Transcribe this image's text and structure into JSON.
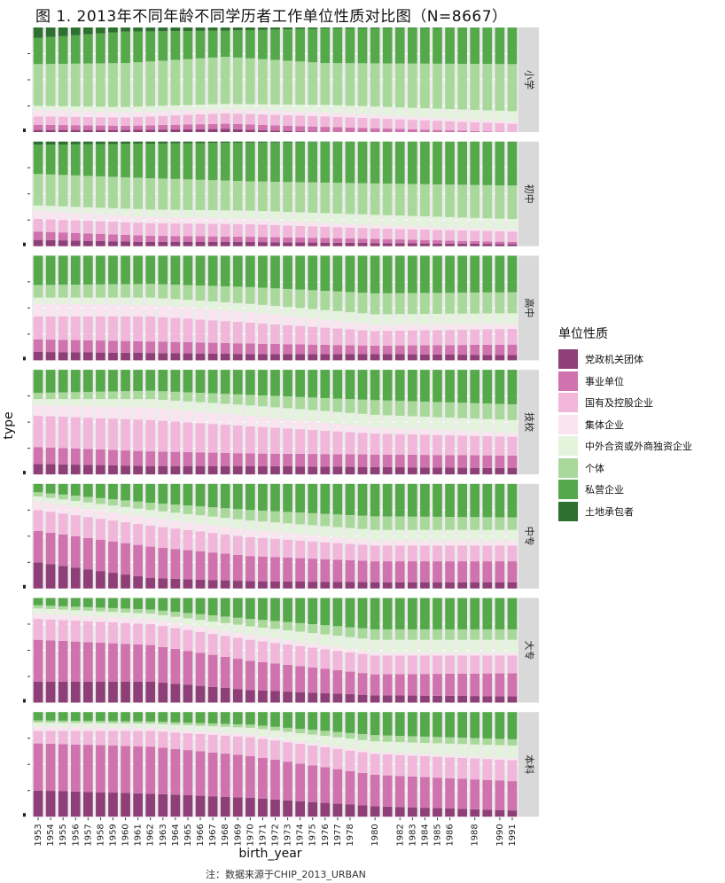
{
  "title": "图 1. 2013年不同年龄不同学历者工作单位性质对比图（N=8667）",
  "note": "注：数据来源于CHIP_2013_URBAN",
  "legend": {
    "title": "单位性质",
    "items": [
      {
        "label": "党政机关团体",
        "color": "#8e3f77"
      },
      {
        "label": "事业单位",
        "color": "#cf72ae"
      },
      {
        "label": "国有及控股企业",
        "color": "#f1b6da"
      },
      {
        "label": "集体企业",
        "color": "#fae4f0"
      },
      {
        "label": "中外合资或外商独资企业",
        "color": "#e3f3dc"
      },
      {
        "label": "个体",
        "color": "#a9d99a"
      },
      {
        "label": "私营企业",
        "color": "#55a94b"
      },
      {
        "label": "土地承包者",
        "color": "#2e7030"
      }
    ]
  },
  "chart_data": {
    "type": "bar",
    "stacked": "proportion",
    "xlabel": "birth_year",
    "ylabel": "type",
    "ylim": [
      0,
      1
    ],
    "x_tick_labels": [
      "1953",
      "1954",
      "1955",
      "1956",
      "1957",
      "1958",
      "1959",
      "1960",
      "1961",
      "1962",
      "1963",
      "1964",
      "1965",
      "1966",
      "1967",
      "1968",
      "1969",
      "1970",
      "1971",
      "1972",
      "1973",
      "1974",
      "1975",
      "1976",
      "1977",
      "1978",
      "1980",
      "1982",
      "1983",
      "1984",
      "1985",
      "1986",
      "1988",
      "1990",
      "1991"
    ],
    "categories": [
      "1953",
      "1954",
      "1955",
      "1956",
      "1957",
      "1958",
      "1959",
      "1960",
      "1961",
      "1962",
      "1963",
      "1964",
      "1965",
      "1966",
      "1967",
      "1968",
      "1969",
      "1970",
      "1971",
      "1972",
      "1973",
      "1974",
      "1975",
      "1976",
      "1977",
      "1978",
      "1979",
      "1980",
      "1981",
      "1982",
      "1983",
      "1984",
      "1985",
      "1986",
      "1987",
      "1988",
      "1989",
      "1990",
      "1991"
    ],
    "series_names": [
      "党政机关团体",
      "事业单位",
      "国有及控股企业",
      "集体企业",
      "中外合资或外商独资企业",
      "个体",
      "私营企业",
      "土地承包者"
    ],
    "panels": [
      {
        "label": "小学",
        "anchors": [
          {
            "year": 1953,
            "shares": [
              0.02,
              0.05,
              0.08,
              0.06,
              0.04,
              0.4,
              0.25,
              0.1
            ]
          },
          {
            "year": 1960,
            "shares": [
              0.02,
              0.04,
              0.08,
              0.05,
              0.05,
              0.42,
              0.3,
              0.04
            ]
          },
          {
            "year": 1968,
            "shares": [
              0.03,
              0.05,
              0.1,
              0.04,
              0.05,
              0.45,
              0.25,
              0.03
            ]
          },
          {
            "year": 1976,
            "shares": [
              0.0,
              0.05,
              0.1,
              0.04,
              0.07,
              0.4,
              0.33,
              0.01
            ]
          },
          {
            "year": 1991,
            "shares": [
              0.0,
              0.0,
              0.08,
              0.02,
              0.1,
              0.45,
              0.35,
              0.0
            ]
          }
        ]
      },
      {
        "label": "初中",
        "anchors": [
          {
            "year": 1953,
            "shares": [
              0.06,
              0.08,
              0.12,
              0.08,
              0.05,
              0.3,
              0.28,
              0.03
            ]
          },
          {
            "year": 1962,
            "shares": [
              0.04,
              0.06,
              0.12,
              0.06,
              0.07,
              0.3,
              0.33,
              0.02
            ]
          },
          {
            "year": 1970,
            "shares": [
              0.04,
              0.05,
              0.12,
              0.05,
              0.08,
              0.28,
              0.37,
              0.01
            ]
          },
          {
            "year": 1980,
            "shares": [
              0.03,
              0.04,
              0.1,
              0.03,
              0.1,
              0.3,
              0.4,
              0.0
            ]
          },
          {
            "year": 1991,
            "shares": [
              0.02,
              0.02,
              0.1,
              0.02,
              0.1,
              0.32,
              0.42,
              0.0
            ]
          }
        ]
      },
      {
        "label": "高中",
        "anchors": [
          {
            "year": 1953,
            "shares": [
              0.08,
              0.12,
              0.22,
              0.12,
              0.06,
              0.12,
              0.28,
              0.0
            ]
          },
          {
            "year": 1962,
            "shares": [
              0.07,
              0.11,
              0.24,
              0.11,
              0.07,
              0.13,
              0.27,
              0.0
            ]
          },
          {
            "year": 1970,
            "shares": [
              0.06,
              0.1,
              0.2,
              0.1,
              0.08,
              0.16,
              0.3,
              0.0
            ]
          },
          {
            "year": 1980,
            "shares": [
              0.06,
              0.08,
              0.14,
              0.06,
              0.1,
              0.2,
              0.36,
              0.0
            ]
          },
          {
            "year": 1991,
            "shares": [
              0.05,
              0.1,
              0.15,
              0.05,
              0.1,
              0.2,
              0.35,
              0.0
            ]
          }
        ]
      },
      {
        "label": "技校",
        "anchors": [
          {
            "year": 1953,
            "shares": [
              0.1,
              0.16,
              0.3,
              0.1,
              0.06,
              0.06,
              0.22,
              0.0
            ]
          },
          {
            "year": 1962,
            "shares": [
              0.08,
              0.14,
              0.3,
              0.12,
              0.08,
              0.08,
              0.2,
              0.0
            ]
          },
          {
            "year": 1970,
            "shares": [
              0.08,
              0.12,
              0.26,
              0.1,
              0.1,
              0.1,
              0.24,
              0.0
            ]
          },
          {
            "year": 1980,
            "shares": [
              0.07,
              0.12,
              0.2,
              0.06,
              0.12,
              0.14,
              0.29,
              0.0
            ]
          },
          {
            "year": 1991,
            "shares": [
              0.06,
              0.12,
              0.18,
              0.04,
              0.12,
              0.15,
              0.33,
              0.0
            ]
          }
        ]
      },
      {
        "label": "中专",
        "anchors": [
          {
            "year": 1953,
            "shares": [
              0.25,
              0.3,
              0.2,
              0.08,
              0.05,
              0.04,
              0.08,
              0.0
            ]
          },
          {
            "year": 1962,
            "shares": [
              0.1,
              0.3,
              0.2,
              0.08,
              0.07,
              0.07,
              0.18,
              0.0
            ]
          },
          {
            "year": 1970,
            "shares": [
              0.07,
              0.24,
              0.18,
              0.07,
              0.09,
              0.1,
              0.25,
              0.0
            ]
          },
          {
            "year": 1980,
            "shares": [
              0.06,
              0.2,
              0.15,
              0.05,
              0.1,
              0.13,
              0.31,
              0.0
            ]
          },
          {
            "year": 1991,
            "shares": [
              0.06,
              0.2,
              0.15,
              0.05,
              0.1,
              0.12,
              0.32,
              0.0
            ]
          }
        ]
      },
      {
        "label": "大专",
        "anchors": [
          {
            "year": 1953,
            "shares": [
              0.2,
              0.4,
              0.2,
              0.05,
              0.05,
              0.03,
              0.07,
              0.0
            ]
          },
          {
            "year": 1962,
            "shares": [
              0.2,
              0.35,
              0.2,
              0.05,
              0.05,
              0.04,
              0.11,
              0.0
            ]
          },
          {
            "year": 1970,
            "shares": [
              0.12,
              0.28,
              0.2,
              0.05,
              0.08,
              0.07,
              0.2,
              0.0
            ]
          },
          {
            "year": 1980,
            "shares": [
              0.07,
              0.2,
              0.18,
              0.03,
              0.12,
              0.1,
              0.3,
              0.0
            ]
          },
          {
            "year": 1991,
            "shares": [
              0.06,
              0.22,
              0.17,
              0.03,
              0.12,
              0.1,
              0.3,
              0.0
            ]
          }
        ]
      },
      {
        "label": "本科",
        "anchors": [
          {
            "year": 1953,
            "shares": [
              0.25,
              0.45,
              0.12,
              0.04,
              0.04,
              0.02,
              0.08,
              0.0
            ]
          },
          {
            "year": 1962,
            "shares": [
              0.22,
              0.45,
              0.15,
              0.03,
              0.04,
              0.02,
              0.09,
              0.0
            ]
          },
          {
            "year": 1970,
            "shares": [
              0.18,
              0.4,
              0.18,
              0.03,
              0.06,
              0.03,
              0.12,
              0.0
            ]
          },
          {
            "year": 1980,
            "shares": [
              0.1,
              0.3,
              0.2,
              0.02,
              0.1,
              0.06,
              0.22,
              0.0
            ]
          },
          {
            "year": 1991,
            "shares": [
              0.06,
              0.28,
              0.2,
              0.02,
              0.12,
              0.06,
              0.26,
              0.0
            ]
          }
        ]
      }
    ]
  }
}
